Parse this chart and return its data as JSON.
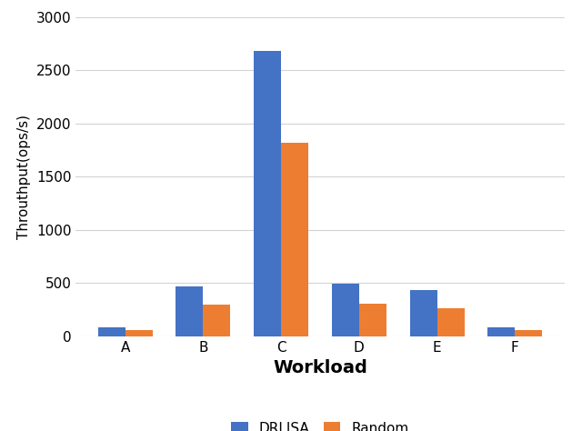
{
  "categories": [
    "A",
    "B",
    "C",
    "D",
    "E",
    "F"
  ],
  "drlisa_values": [
    80,
    470,
    2680,
    490,
    430,
    85
  ],
  "random_values": [
    55,
    300,
    1820,
    305,
    260,
    55
  ],
  "drlisa_color": "#4472C4",
  "random_color": "#ED7D31",
  "xlabel": "Workload",
  "ylabel": "Throuthput(ops/s)",
  "ylim": [
    0,
    3000
  ],
  "yticks": [
    0,
    500,
    1000,
    1500,
    2000,
    2500,
    3000
  ],
  "legend_labels": [
    "DRLISA",
    "Random"
  ],
  "bar_width": 0.35,
  "xlabel_fontsize": 14,
  "ylabel_fontsize": 11,
  "xlabel_fontweight": "bold",
  "legend_fontsize": 11,
  "tick_fontsize": 11,
  "background_color": "#ffffff",
  "grid_color": "#d3d3d3"
}
